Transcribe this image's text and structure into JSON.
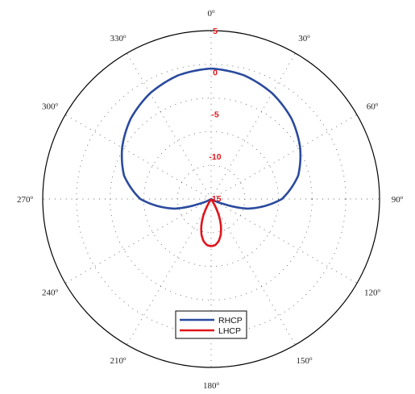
{
  "chart_data": {
    "type": "polar-line",
    "angular_ticks": [
      {
        "angle": 0,
        "label": "0"
      },
      {
        "angle": 30,
        "label": "30"
      },
      {
        "angle": 60,
        "label": "60"
      },
      {
        "angle": 90,
        "label": "90"
      },
      {
        "angle": 120,
        "label": "120"
      },
      {
        "angle": 150,
        "label": "150"
      },
      {
        "angle": 180,
        "label": "180"
      },
      {
        "angle": 210,
        "label": "210"
      },
      {
        "angle": 240,
        "label": "240"
      },
      {
        "angle": 270,
        "label": "270"
      },
      {
        "angle": 300,
        "label": "300"
      },
      {
        "angle": 330,
        "label": "330"
      }
    ],
    "angle_unit_symbol": "o",
    "radial_ticks": [
      "5",
      "0",
      "-5",
      "-10",
      "-15"
    ],
    "radial_range": [
      -15,
      5
    ],
    "grid": true,
    "legend_position": "bottom-center",
    "series": [
      {
        "name": "RHCP",
        "color": "#2a4a9e",
        "theta": [
          0,
          15,
          30,
          45,
          60,
          75,
          90,
          105,
          112,
          120,
          180,
          240,
          248,
          255,
          270,
          285,
          300,
          315,
          330,
          345,
          360
        ],
        "r": [
          0.5,
          0.2,
          -0.5,
          -1.5,
          -2.8,
          -4.3,
          -6.6,
          -10.6,
          -13.5,
          -15,
          -15,
          -15,
          -13.5,
          -10.6,
          -6.6,
          -4.3,
          -2.8,
          -1.5,
          -0.5,
          0.2,
          0.5
        ]
      },
      {
        "name": "LHCP",
        "color": "#e0141c",
        "theta": [
          0,
          90,
          148,
          150,
          155,
          160,
          165,
          170,
          175,
          180,
          185,
          190,
          195,
          200,
          205,
          210,
          212,
          270,
          360
        ],
        "r": [
          -15,
          -15,
          -15,
          -14.2,
          -12.8,
          -11.6,
          -10.6,
          -9.9,
          -9.5,
          -9.4,
          -9.5,
          -9.9,
          -10.6,
          -11.6,
          -12.8,
          -14.2,
          -15,
          -15,
          -15
        ]
      }
    ]
  }
}
